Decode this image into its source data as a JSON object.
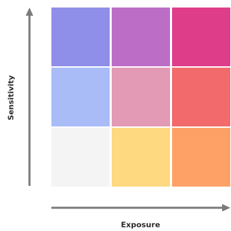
{
  "axes": {
    "y_label": "Sensitivity",
    "x_label": "Exposure",
    "line_color": "#7a7a7a"
  },
  "matrix": {
    "rows": 3,
    "columns": 3,
    "cells": [
      {
        "row": "top",
        "column": "left",
        "color": "#8f8ee8"
      },
      {
        "row": "top",
        "column": "middle",
        "color": "#bc6ec7"
      },
      {
        "row": "top",
        "column": "right",
        "color": "#de3d8a"
      },
      {
        "row": "middle",
        "column": "left",
        "color": "#a9bcf8"
      },
      {
        "row": "middle",
        "column": "middle",
        "color": "#e39ab5"
      },
      {
        "row": "middle",
        "column": "right",
        "color": "#f26a6c"
      },
      {
        "row": "bottom",
        "column": "left",
        "color": "#f4f4f4"
      },
      {
        "row": "bottom",
        "column": "middle",
        "color": "#fed980"
      },
      {
        "row": "bottom",
        "column": "right",
        "color": "#fea166"
      }
    ]
  }
}
